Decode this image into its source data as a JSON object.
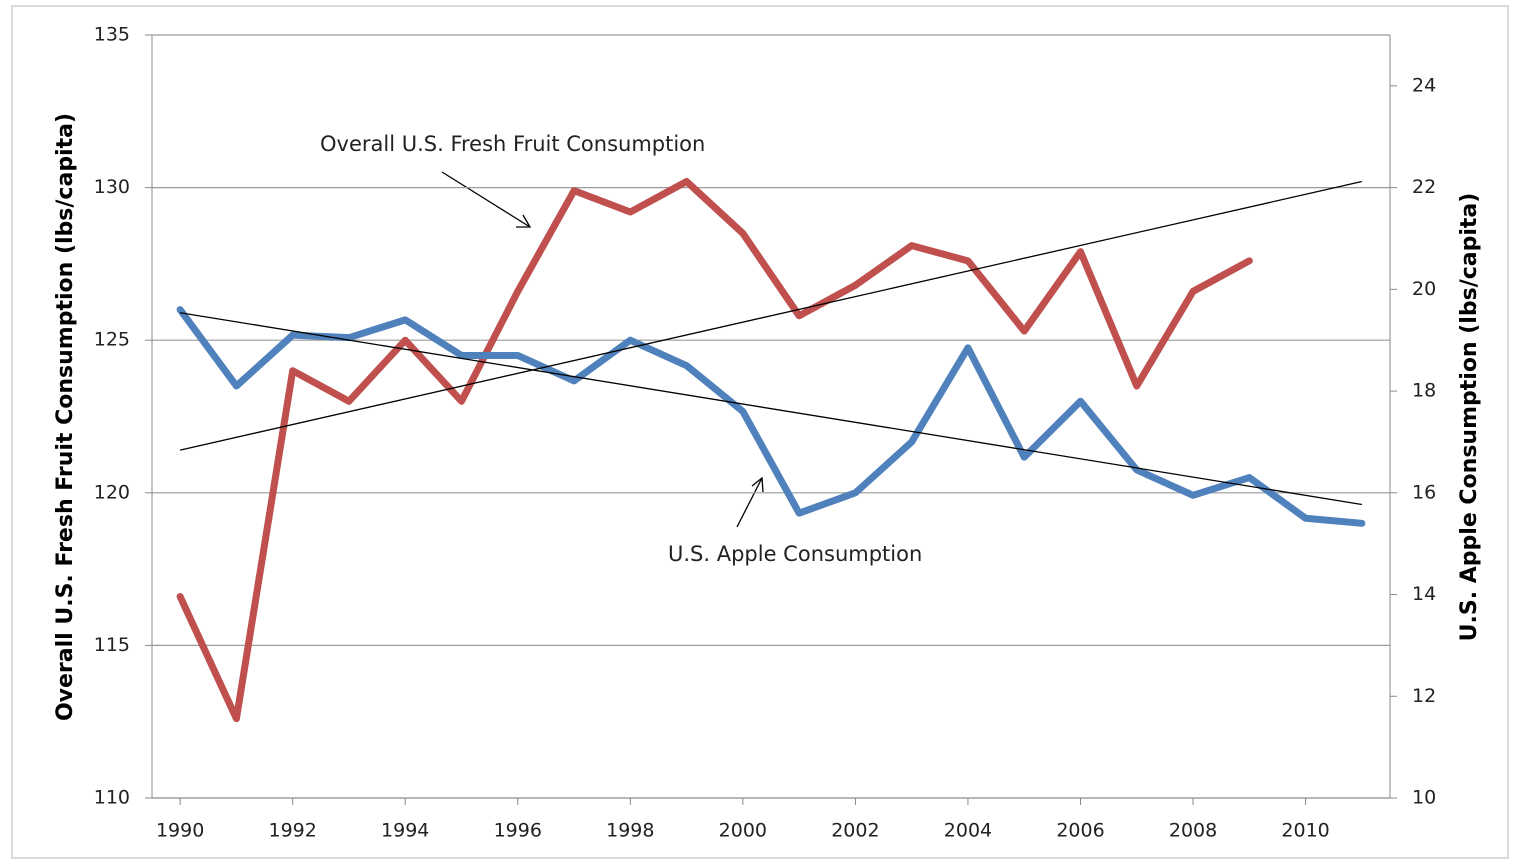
{
  "chart_data": {
    "type": "line",
    "y_label": "Overall U.S.  Fresh Fruit Consumption (lbs/capita)",
    "y2_label": "U.S. Apple Consumption (lbs/capita)",
    "annotations": [
      "Overall  U.S. Fresh Fruit Consumption",
      "U.S. Apple Consumption"
    ],
    "x": [
      1990,
      1991,
      1992,
      1993,
      1994,
      1995,
      1996,
      1997,
      1998,
      1999,
      2000,
      2001,
      2002,
      2003,
      2004,
      2005,
      2006,
      2007,
      2008,
      2009,
      2010,
      2011
    ],
    "series": [
      {
        "color": "#c0504d",
        "axis": "y",
        "values": [
          116.6,
          112.6,
          124.0,
          123.0,
          125.0,
          123.0,
          126.6,
          129.9,
          129.2,
          130.2,
          128.5,
          125.8,
          126.8,
          128.1,
          127.6,
          125.3,
          127.9,
          123.5,
          126.6,
          127.6,
          null,
          null
        ]
      },
      {
        "color": "#4f81bd",
        "axis": "y2",
        "values": [
          19.6,
          18.1,
          19.1,
          19.05,
          19.4,
          18.7,
          18.7,
          18.2,
          19.0,
          18.5,
          17.6,
          15.6,
          16.0,
          17.0,
          18.85,
          16.7,
          17.8,
          16.45,
          15.95,
          16.3,
          15.5,
          15.4
        ]
      }
    ],
    "trendlines": [
      {
        "axis": "y",
        "x": [
          1990,
          2011
        ],
        "values": [
          121.4,
          130.2
        ]
      },
      {
        "axis": "y2",
        "x": [
          1990,
          2011
        ],
        "values": [
          19.54,
          15.77
        ]
      }
    ],
    "xlim": [
      1989.5,
      2011.5
    ],
    "xticks": [
      1990,
      1992,
      1994,
      1996,
      1998,
      2000,
      2002,
      2004,
      2006,
      2008,
      2010
    ],
    "ylim": [
      110,
      135
    ],
    "yticks": [
      110,
      115,
      120,
      125,
      130,
      135
    ],
    "y2lim": [
      10,
      25
    ],
    "y2ticks": [
      10,
      12,
      14,
      16,
      18,
      20,
      22,
      24
    ],
    "grid": true
  }
}
